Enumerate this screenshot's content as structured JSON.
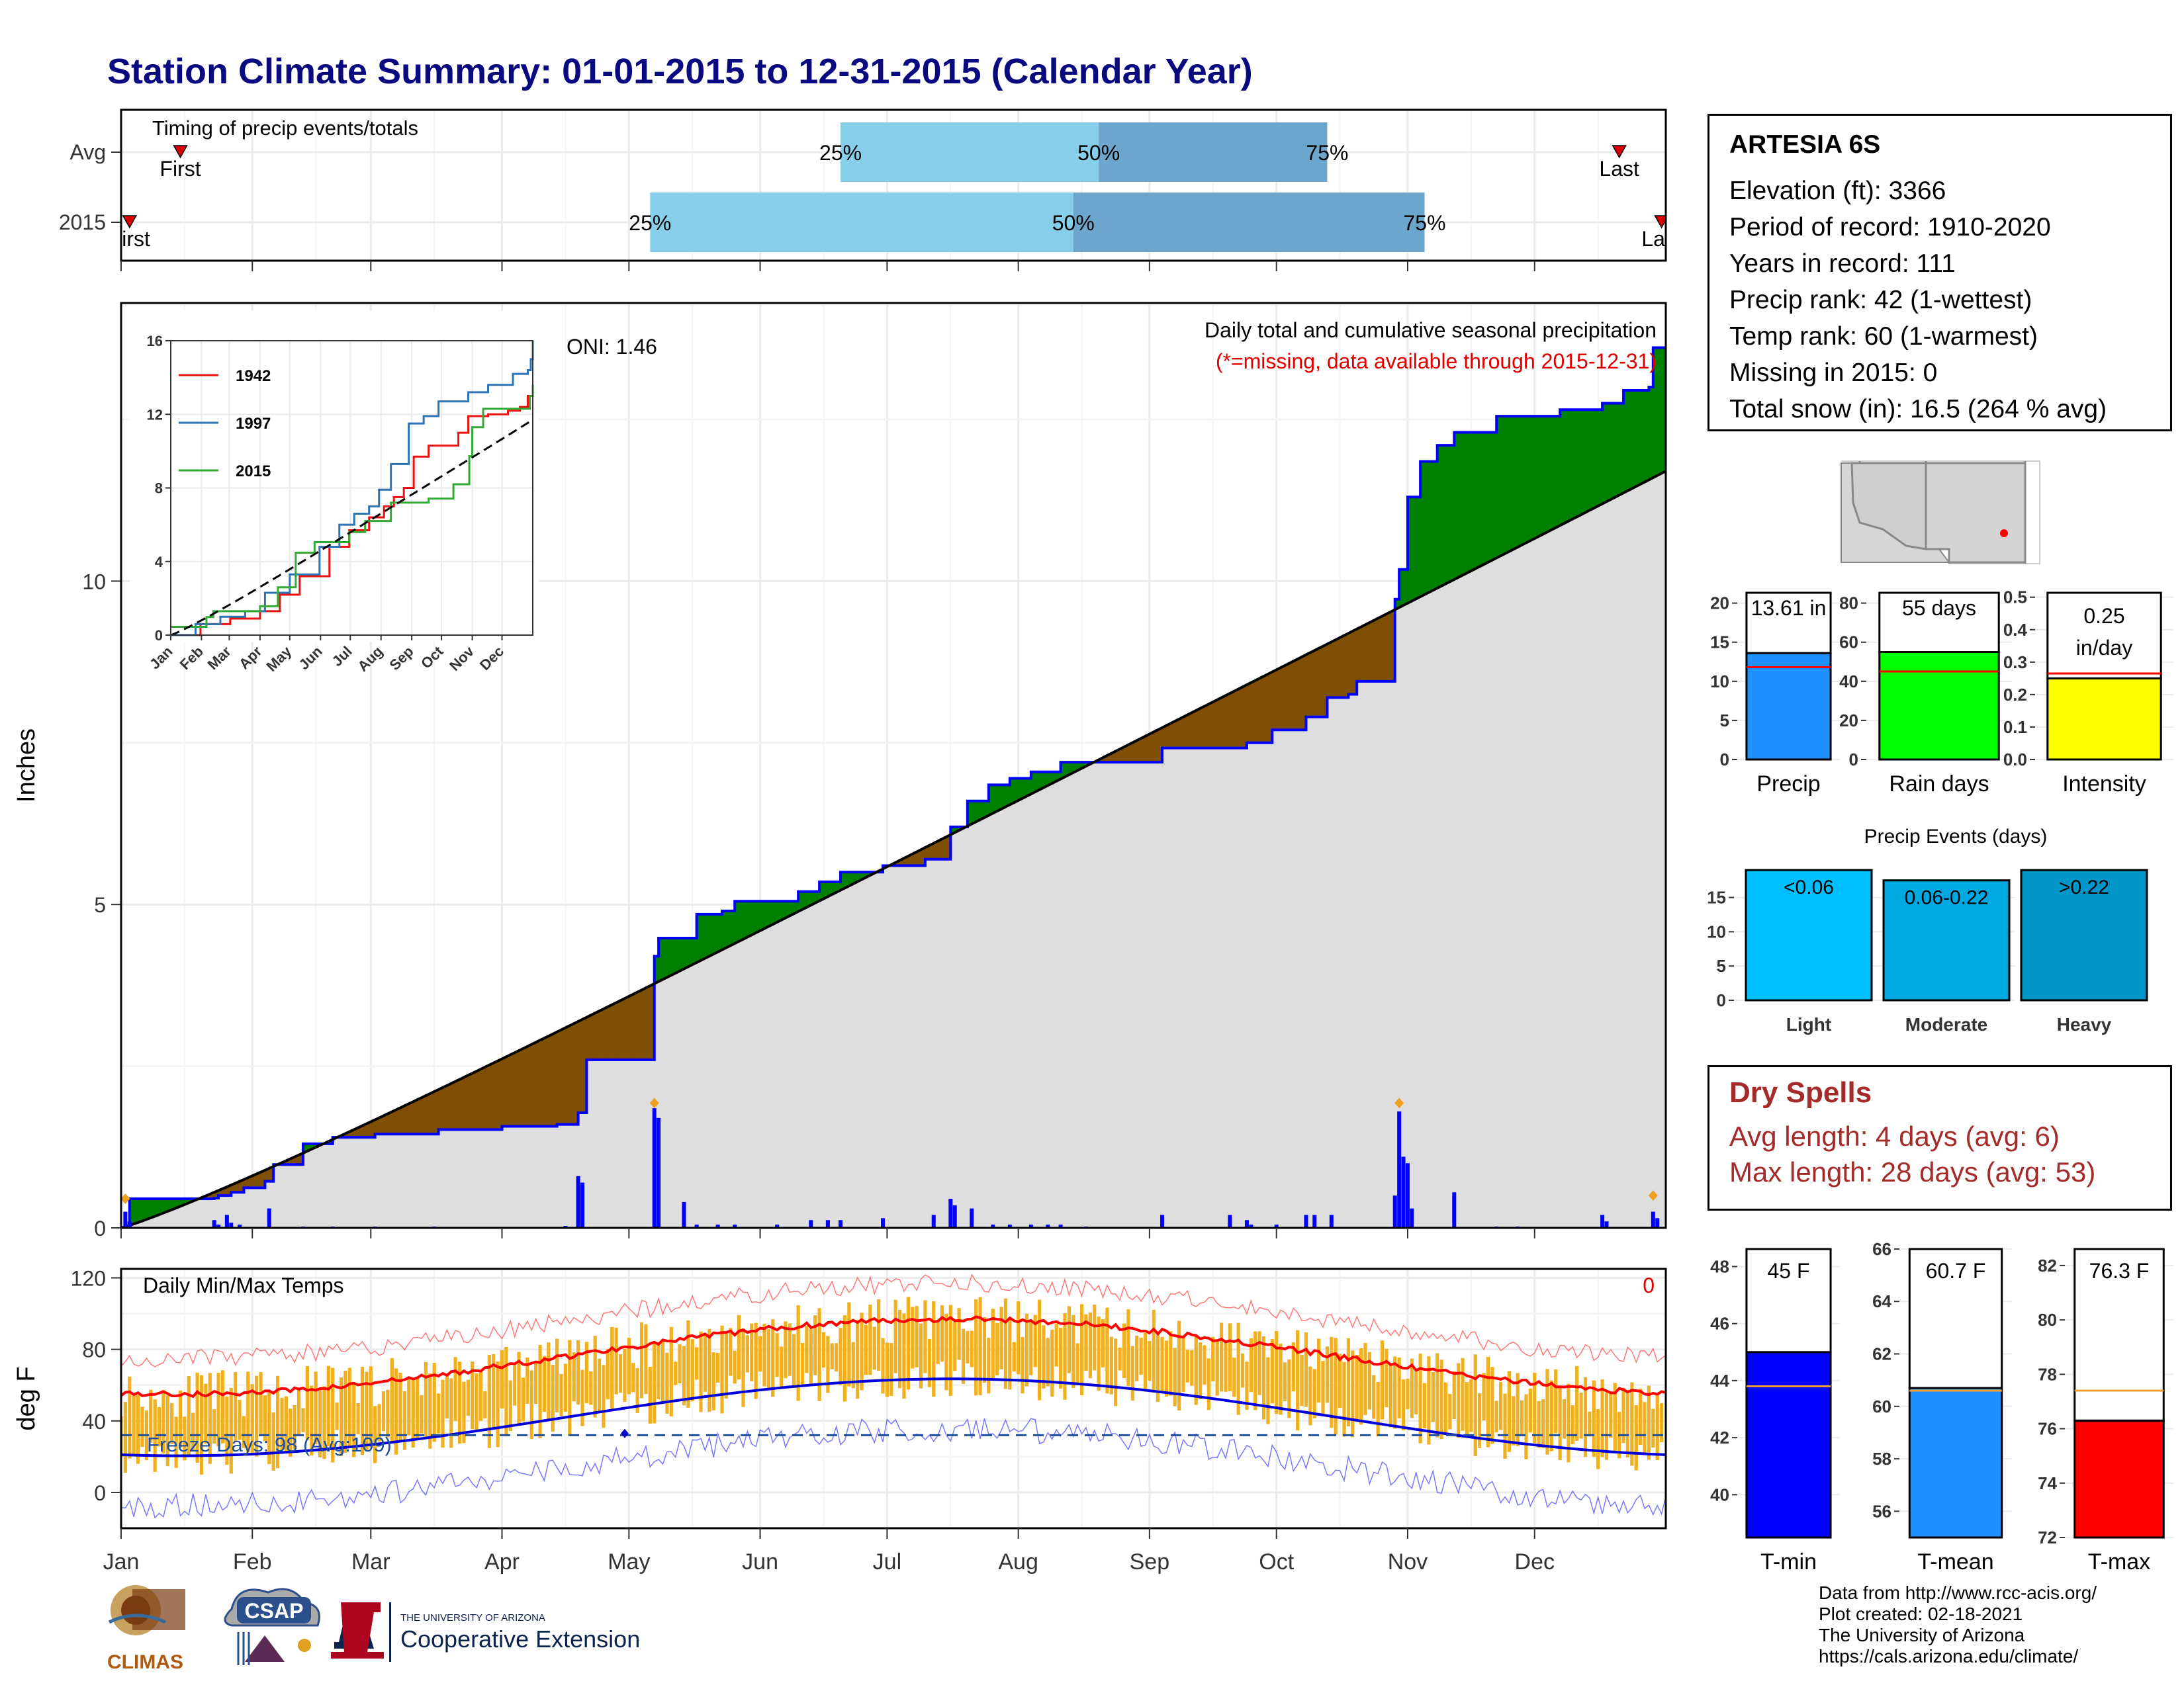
{
  "title": "Station Climate Summary: 01-01-2015 to 12-31-2015 (Calendar Year)",
  "colors": {
    "title": "#0a0a80",
    "green": "#008000",
    "brown": "#7f4f05",
    "normal": "#dedede",
    "blue": "#0000ff",
    "red": "#ff0000",
    "gold": "#f0b020"
  },
  "timing": {
    "title": "Timing of precip events/totals",
    "rows": [
      {
        "label": "Avg",
        "first_label": "First",
        "last_label": "Last",
        "first": 14,
        "last": 354,
        "p25": 170,
        "p50": 231,
        "p75": 285,
        "p25_label": "25%",
        "p50_label": "50%",
        "p75_label": "75%"
      },
      {
        "label": "2015",
        "first_label": "First",
        "last_label": "Last",
        "first": 2,
        "last": 364,
        "p25": 125,
        "p50": 225,
        "p75": 308,
        "p25_label": "25%",
        "p50_label": "50%",
        "p75_label": "75%"
      }
    ]
  },
  "months": [
    "Jan",
    "Feb",
    "Mar",
    "Apr",
    "May",
    "Jun",
    "Jul",
    "Aug",
    "Sep",
    "Oct",
    "Nov",
    "Dec"
  ],
  "precip_panel": {
    "title": "Daily total and cumulative seasonal precipitation",
    "missing_note": "(*=missing, data available through 2015-12-31)",
    "oni": "ONI: 1.46",
    "ylabel": "Inches",
    "yticks": [
      "0",
      "5",
      "10"
    ],
    "ylim": [
      0,
      14.3
    ]
  },
  "inset": {
    "yticks": [
      "0",
      "4",
      "8",
      "12",
      "16"
    ],
    "ylim": [
      0,
      16
    ],
    "legend": [
      {
        "name": "1942",
        "color": "#ee1111"
      },
      {
        "name": "1997",
        "color": "#2b75b6"
      },
      {
        "name": "2015",
        "color": "#33aa33"
      }
    ]
  },
  "temp_panel": {
    "title": "Daily Min/Max Temps",
    "missing_count": "0",
    "ylabel": "deg F",
    "yticks": [
      "0",
      "40",
      "80",
      "120"
    ],
    "ylim": [
      -20,
      125
    ],
    "freeze_label": "Freeze Days: 98 (Avg:109)",
    "freeze_line": 32
  },
  "station": {
    "name": "ARTESIA 6S",
    "lines": [
      "Elevation (ft): 3366",
      "Period of record: 1910-2020",
      "Years in record: 111",
      "Precip rank: 42 (1-wettest)",
      "Temp rank: 60 (1-warmest)",
      "Missing in 2015: 0",
      "Total snow (in): 16.5 (264 % avg)"
    ]
  },
  "bar_panels": [
    {
      "label": "Precip",
      "value": 13.61,
      "value_label": "13.61 in",
      "avg": 11.8,
      "ymin": 0,
      "ymax": 22,
      "ticks": [
        "0",
        "5",
        "10",
        "15",
        "20"
      ],
      "color": "#1e90ff"
    },
    {
      "label": "Rain days",
      "value": 55,
      "value_label": "55 days",
      "avg": 45,
      "ymin": 0,
      "ymax": 88,
      "ticks": [
        "0",
        "20",
        "40",
        "60",
        "80"
      ],
      "color": "#00ff00"
    },
    {
      "label": "Intensity",
      "value": 0.25,
      "value_label": "0.25",
      "value_label2": "in/day",
      "avg": 0.265,
      "ymin": 0,
      "ymax": 0.53,
      "ticks": [
        "0.0",
        "0.1",
        "0.2",
        "0.3",
        "0.4",
        "0.5"
      ],
      "color": "#ffff00"
    }
  ],
  "events": {
    "title": "Precip Events (days)",
    "ticks": [
      "0",
      "5",
      "10",
      "15"
    ],
    "ymax": 19.5,
    "bars": [
      {
        "label": "Light",
        "value_label": "<0.06",
        "value": 19,
        "color": "#00bfff"
      },
      {
        "label": "Moderate",
        "value_label": "0.06-0.22",
        "value": 17.5,
        "color": "#00a9e0"
      },
      {
        "label": "Heavy",
        "value_label": ">0.22",
        "value": 19,
        "color": "#0096c7"
      }
    ]
  },
  "dry_spells": {
    "title": "Dry Spells",
    "lines": [
      "Avg length: 4 days (avg: 6)",
      "Max length: 28 days (avg: 53)"
    ]
  },
  "temp_bars": [
    {
      "label": "T-min",
      "value": 45,
      "value_label": "45 F",
      "avg": 43.8,
      "ymin": 38.5,
      "ymax": 48.8,
      "ticks": [
        "40",
        "42",
        "44",
        "46",
        "48"
      ],
      "color": "#0000ff"
    },
    {
      "label": "T-mean",
      "value": 60.7,
      "value_label": "60.7 F",
      "avg": 60.6,
      "ymin": 55,
      "ymax": 66.2,
      "ticks": [
        "56",
        "58",
        "60",
        "62",
        "64",
        "66"
      ],
      "color": "#1e90ff"
    },
    {
      "label": "T-max",
      "value": 76.3,
      "value_label": "76.3 F",
      "avg": 77.4,
      "ymin": 72,
      "ymax": 82.8,
      "ticks": [
        "72",
        "74",
        "76",
        "78",
        "80",
        "82"
      ],
      "color": "#ff0000"
    }
  ],
  "logos": {
    "climas": "CLIMAS",
    "csap": "CSAP",
    "uofa_small": "THE UNIVERSITY OF ARIZONA",
    "uofa_big": "Cooperative Extension"
  },
  "credits": [
    "Data from http://www.rcc-acis.org/",
    "Plot created: 02-18-2021",
    "The University of Arizona",
    "https://cals.arizona.edu/climate/"
  ]
}
